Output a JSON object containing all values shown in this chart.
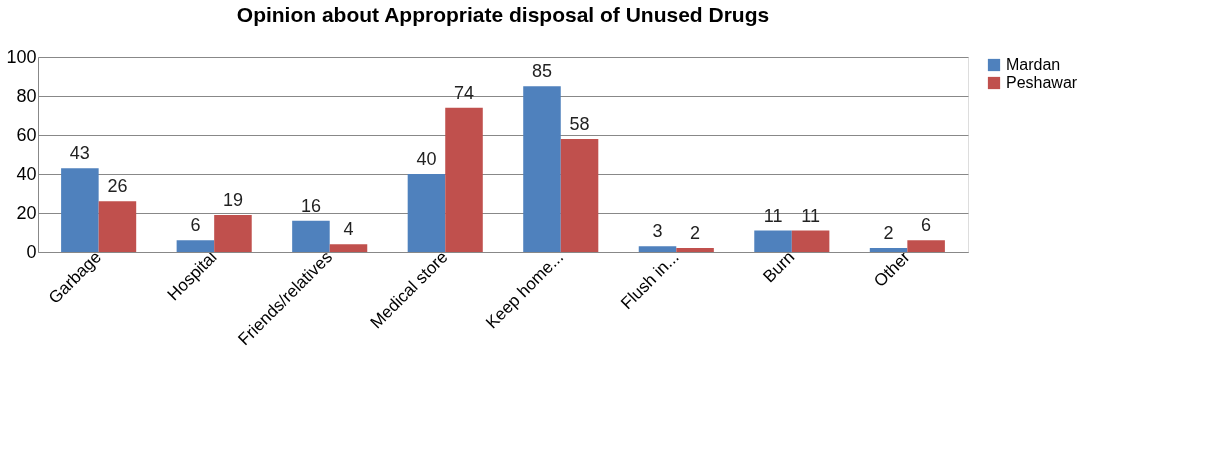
{
  "chart_data": {
    "type": "bar",
    "title": "Opinion about Appropriate disposal of Unused Drugs",
    "categories": [
      "Garbage",
      "Hospital",
      "Friends/relatives",
      "Medical store",
      "Keep home...",
      "Flush in...",
      "Burn",
      "Other"
    ],
    "series": [
      {
        "name": "Mardan",
        "color": "#4f81bd",
        "values": [
          43,
          6,
          16,
          40,
          85,
          3,
          11,
          2
        ]
      },
      {
        "name": "Peshawar",
        "color": "#c0504d",
        "values": [
          26,
          19,
          4,
          74,
          58,
          2,
          11,
          6
        ]
      }
    ],
    "ylim": [
      0,
      100
    ],
    "yticks": [
      0,
      20,
      40,
      60,
      80,
      100
    ],
    "grid": "y",
    "legend": "right",
    "data_labels": true
  }
}
